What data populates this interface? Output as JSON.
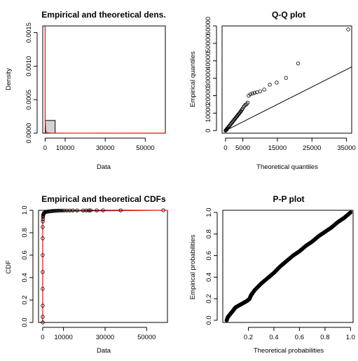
{
  "chart_data": [
    {
      "type": "bar",
      "title": "Empirical and theoretical dens.",
      "xlabel": "Data",
      "ylabel": "Density",
      "xlim": [
        -1200,
        60000
      ],
      "ylim": [
        0,
        0.0016
      ],
      "xticks": [
        0,
        10000,
        30000,
        50000
      ],
      "yticks": [
        0.0,
        0.0005,
        0.001,
        0.0015
      ],
      "xtick_labels": [
        "0",
        "10000",
        "30000",
        "50000"
      ],
      "ytick_labels": [
        "0.0000",
        "0.0005",
        "0.0010",
        "0.0015"
      ],
      "histogram": {
        "bins": [
          [
            0,
            5000
          ]
        ],
        "densities": [
          0.00019
        ],
        "fill": "#d3d3d3"
      },
      "density_curve": {
        "color": "#ff0000",
        "x": [
          0,
          0,
          300,
          1000,
          3000,
          10000,
          60000
        ],
        "y": [
          0.0016,
          0.0002,
          3e-05,
          6e-06,
          2e-06,
          5e-07,
          1e-07
        ]
      }
    },
    {
      "type": "scatter",
      "title": "Q-Q plot",
      "xlabel": "Theoretical quantiles",
      "ylabel": "Empirical quantiles",
      "xlim": [
        -1000,
        36500
      ],
      "ylim": [
        -1500,
        60000
      ],
      "xticks": [
        0,
        5000,
        15000,
        25000,
        35000
      ],
      "yticks": [
        0,
        10000,
        20000,
        30000,
        40000,
        50000,
        60000
      ],
      "xtick_labels": [
        "0",
        "5000",
        "15000",
        "25000",
        "35000"
      ],
      "ytick_labels": [
        "0",
        "10000",
        "20000",
        "30000",
        "40000",
        "50000",
        "60000"
      ],
      "x": [
        0,
        100,
        200,
        300,
        400,
        500,
        700,
        900,
        1100,
        1300,
        1500,
        1700,
        1900,
        2100,
        2300,
        2500,
        2700,
        2900,
        3100,
        3300,
        3500,
        3700,
        3900,
        4100,
        4300,
        4500,
        4700,
        4900,
        5200,
        5500,
        5800,
        6100,
        6400,
        6700,
        7200,
        7800,
        8400,
        9100,
        10000,
        11200,
        12800,
        14800,
        17500,
        21000,
        35500
      ],
      "y": [
        0,
        200,
        400,
        650,
        900,
        1200,
        1700,
        2200,
        2700,
        3200,
        3700,
        4200,
        4700,
        5200,
        5700,
        6200,
        6700,
        7200,
        7700,
        8200,
        8700,
        9200,
        9700,
        10200,
        10700,
        11300,
        11900,
        12500,
        13500,
        14300,
        14800,
        15200,
        16000,
        20000,
        20800,
        21300,
        21700,
        22000,
        22500,
        23500,
        26300,
        27500,
        30200,
        38500,
        58000
      ],
      "reference_line": {
        "x": [
          0,
          36500
        ],
        "y": [
          0,
          36500
        ]
      }
    },
    {
      "type": "scatter",
      "title": "Empirical and theoretical CDFs",
      "xlabel": "Data",
      "ylabel": "CDF",
      "xlim": [
        -2000,
        60000
      ],
      "ylim": [
        0,
        1
      ],
      "xticks": [
        0,
        10000,
        30000,
        50000
      ],
      "yticks": [
        0.0,
        0.2,
        0.4,
        0.6,
        0.8,
        1.0
      ],
      "xtick_labels": [
        "0",
        "10000",
        "30000",
        "50000"
      ],
      "ytick_labels": [
        "0.0",
        "0.2",
        "0.4",
        "0.6",
        "0.8",
        "1.0"
      ],
      "x": [
        0,
        0,
        0,
        0,
        0,
        0,
        0,
        0,
        50,
        100,
        150,
        200,
        300,
        400,
        500,
        600,
        800,
        1000,
        1200,
        1500,
        1800,
        2200,
        2600,
        3000,
        3500,
        4000,
        4500,
        5000,
        5600,
        6200,
        6800,
        7500,
        8300,
        9200,
        10200,
        11500,
        13000,
        14500,
        16500,
        19500,
        21000,
        22300,
        23000,
        26000,
        29000,
        37500,
        58000
      ],
      "y": [
        0.0,
        0.05,
        0.15,
        0.3,
        0.45,
        0.6,
        0.75,
        0.85,
        0.9,
        0.92,
        0.94,
        0.95,
        0.96,
        0.965,
        0.97,
        0.975,
        0.978,
        0.981,
        0.983,
        0.985,
        0.987,
        0.988,
        0.989,
        0.99,
        0.991,
        0.992,
        0.993,
        0.994,
        0.995,
        0.996,
        0.996,
        0.997,
        0.997,
        0.997,
        0.998,
        0.998,
        0.998,
        0.999,
        0.999,
        0.999,
        0.999,
        0.999,
        0.9995,
        0.9995,
        0.9995,
        0.9998,
        1.0
      ],
      "cdf_curve": {
        "color": "#ff0000",
        "x": [
          0,
          60000
        ],
        "y": [
          0,
          1
        ]
      }
    },
    {
      "type": "scatter",
      "title": "P-P plot",
      "xlabel": "Theoretical probabilities",
      "ylabel": "Empirical probabilities",
      "xlim": [
        0.0,
        1.02
      ],
      "ylim": [
        -0.02,
        1.02
      ],
      "xticks": [
        0.2,
        0.4,
        0.6,
        0.8,
        1.0
      ],
      "yticks": [
        0.0,
        0.2,
        0.4,
        0.6,
        0.8,
        1.0
      ],
      "xtick_labels": [
        "0.2",
        "0.4",
        "0.6",
        "0.8",
        "1.0"
      ],
      "ytick_labels": [
        "0.0",
        "0.2",
        "0.4",
        "0.6",
        "0.8",
        "1.0"
      ],
      "curve_points": [
        [
          0.03,
          0.0
        ],
        [
          0.04,
          0.03
        ],
        [
          0.06,
          0.06
        ],
        [
          0.08,
          0.09
        ],
        [
          0.1,
          0.12
        ],
        [
          0.13,
          0.14
        ],
        [
          0.16,
          0.16
        ],
        [
          0.19,
          0.18
        ],
        [
          0.21,
          0.2
        ],
        [
          0.22,
          0.23
        ],
        [
          0.25,
          0.28
        ],
        [
          0.3,
          0.34
        ],
        [
          0.35,
          0.39
        ],
        [
          0.4,
          0.44
        ],
        [
          0.45,
          0.5
        ],
        [
          0.5,
          0.55
        ],
        [
          0.55,
          0.6
        ],
        [
          0.6,
          0.64
        ],
        [
          0.65,
          0.69
        ],
        [
          0.7,
          0.73
        ],
        [
          0.75,
          0.78
        ],
        [
          0.8,
          0.82
        ],
        [
          0.85,
          0.86
        ],
        [
          0.9,
          0.91
        ],
        [
          0.95,
          0.95
        ],
        [
          1.0,
          1.0
        ]
      ]
    }
  ]
}
